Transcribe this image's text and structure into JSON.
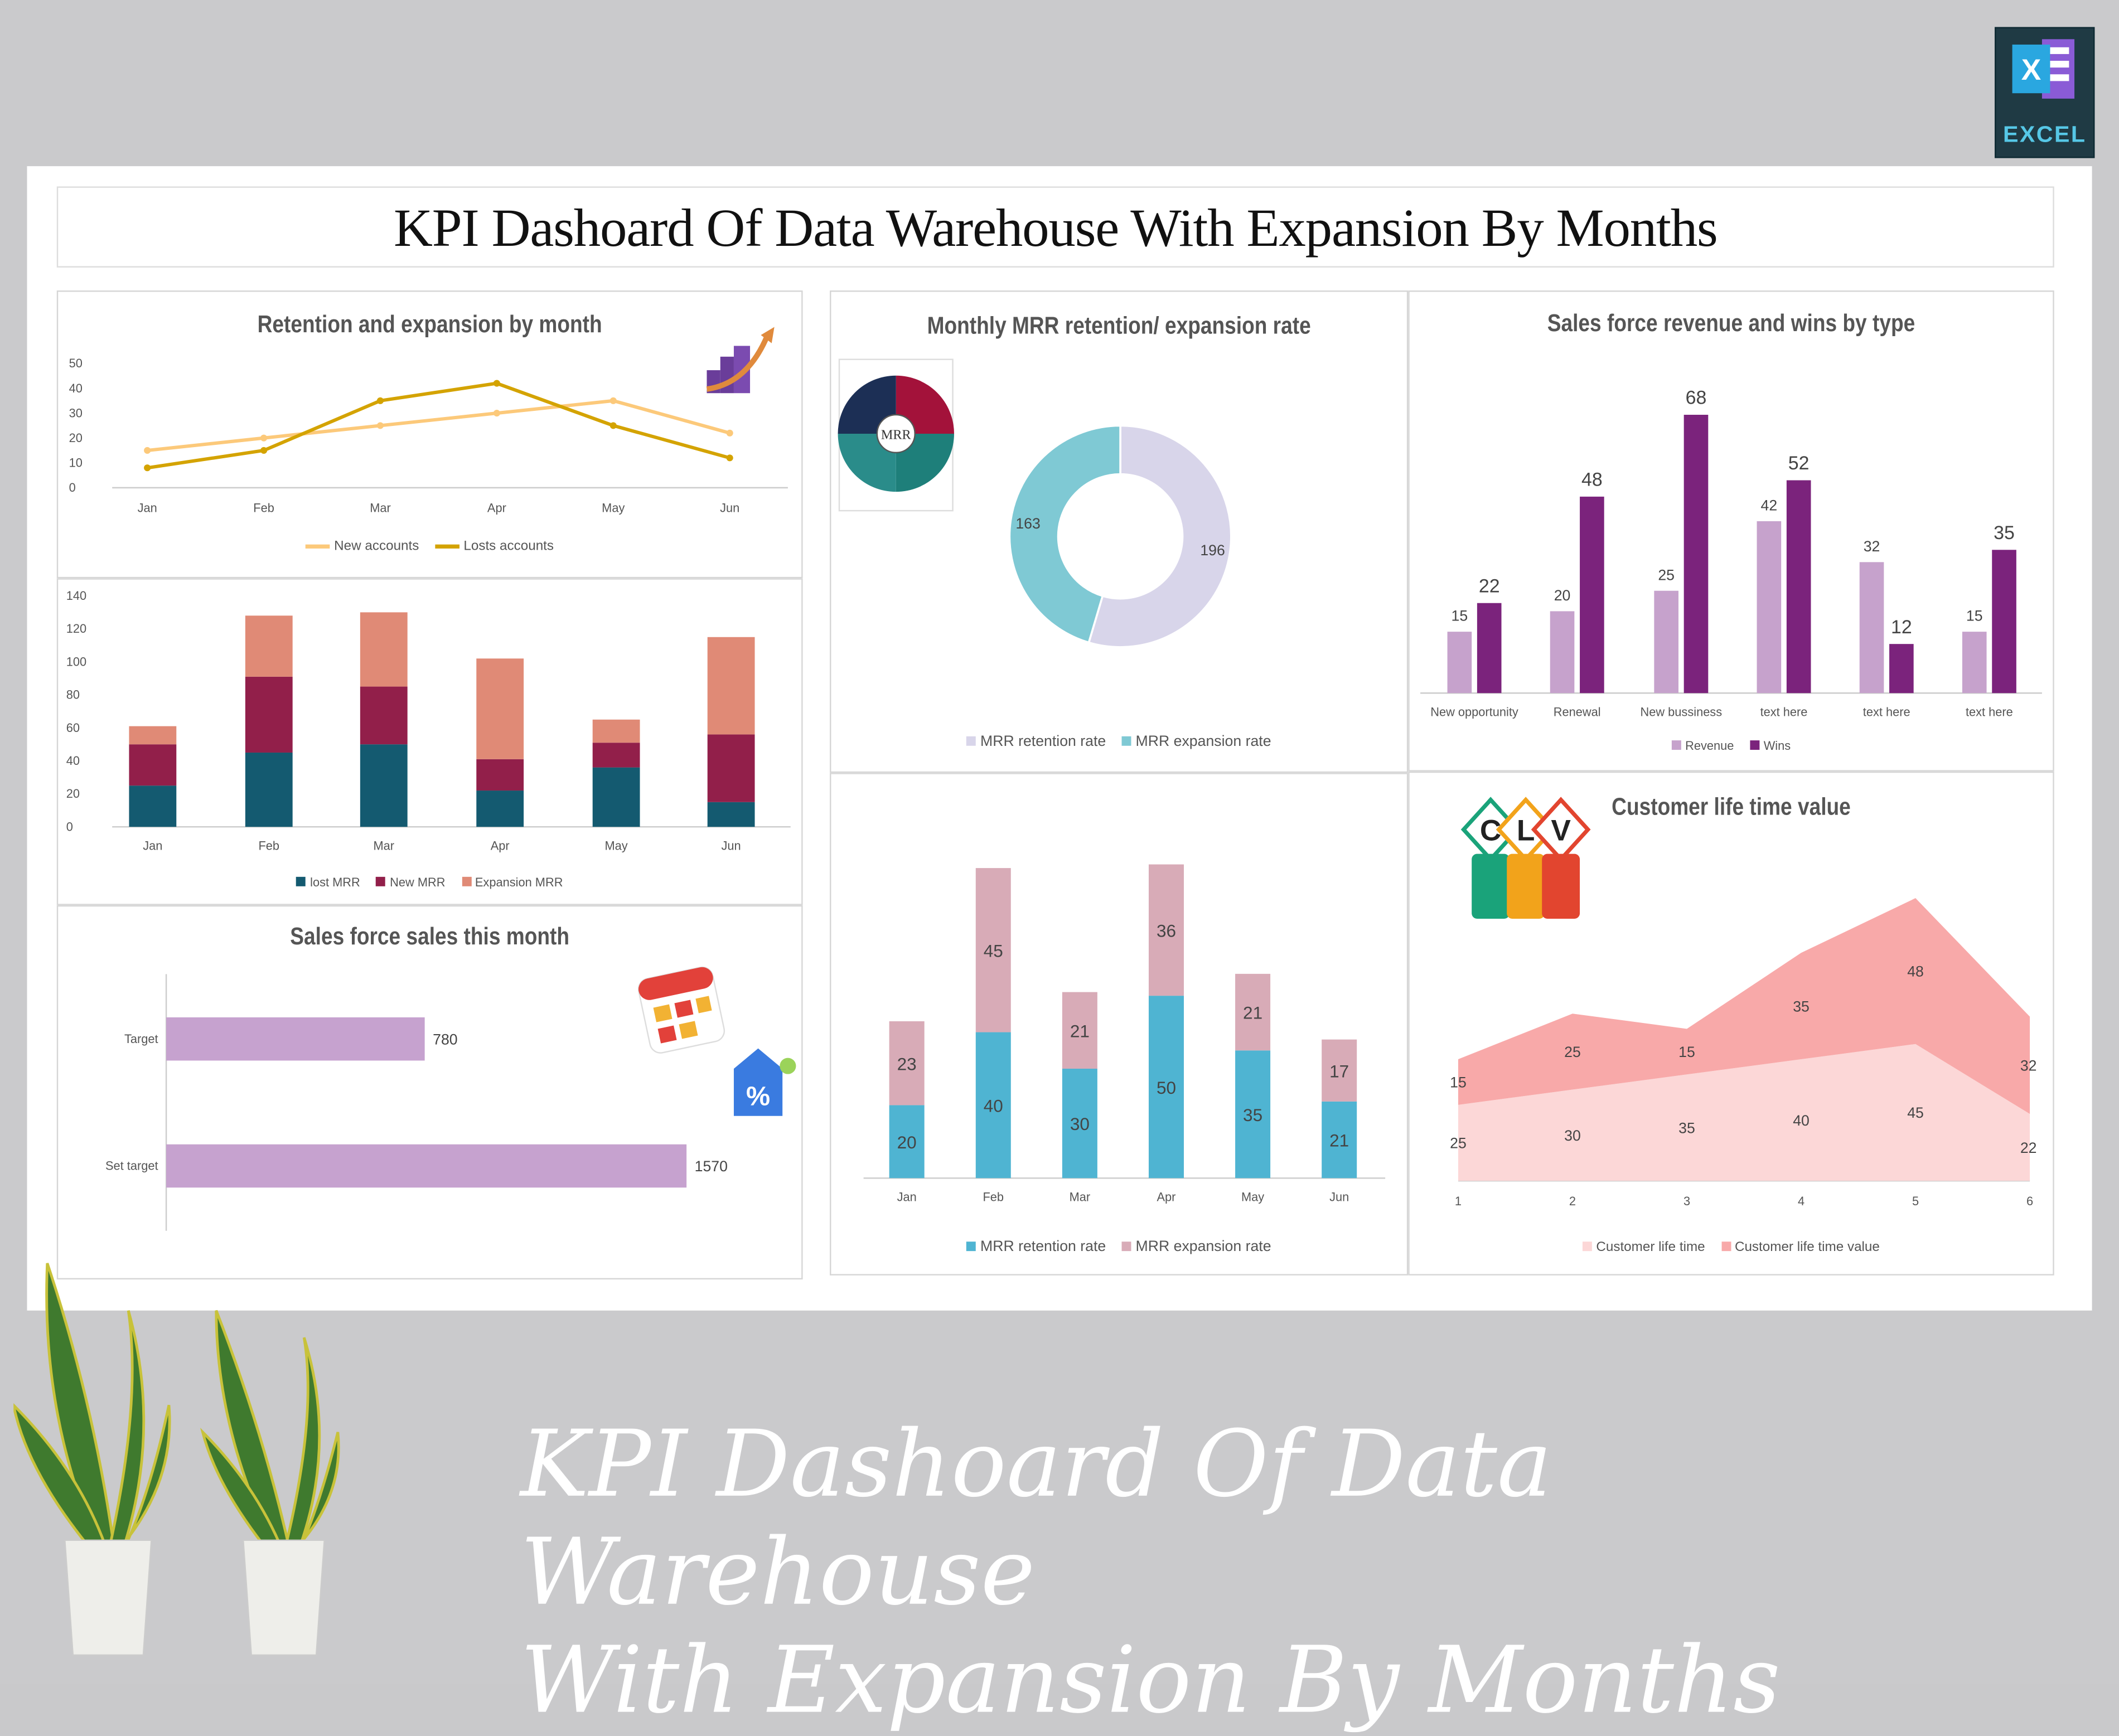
{
  "title": "KPI Dashoard Of Data Warehouse With Expansion By Months",
  "banner": {
    "line1": "KPI Dashoard Of Data Warehouse",
    "line2": "With Expansion By Months"
  },
  "excel_badge": {
    "label": "EXCEL",
    "icon": "excel-icon"
  },
  "chart_data": [
    {
      "id": "retention",
      "type": "line",
      "title": "Retention and expansion by month",
      "categories": [
        "Jan",
        "Feb",
        "Mar",
        "Apr",
        "May",
        "Jun"
      ],
      "ylim": [
        0,
        50
      ],
      "yticks": [
        "0",
        "10",
        "20",
        "30",
        "40",
        "50"
      ],
      "series": [
        {
          "name": "New accounts",
          "values": [
            15,
            20,
            25,
            30,
            35,
            22
          ],
          "color": "#fcc97a"
        },
        {
          "name": "Losts accounts",
          "values": [
            8,
            15,
            35,
            42,
            25,
            12
          ],
          "color": "#d4a300"
        }
      ]
    },
    {
      "id": "mrr_stack",
      "type": "bar",
      "stacked": true,
      "title": "",
      "categories": [
        "Jan",
        "Feb",
        "Mar",
        "Apr",
        "May",
        "Jun"
      ],
      "ylim": [
        0,
        140
      ],
      "yticks": [
        "0",
        "20",
        "40",
        "60",
        "80",
        "100",
        "120",
        "140"
      ],
      "series": [
        {
          "name": "lost MRR",
          "values": [
            25,
            45,
            50,
            22,
            36,
            15
          ],
          "color": "#145a70"
        },
        {
          "name": "New MRR",
          "values": [
            25,
            46,
            35,
            19,
            15,
            41
          ],
          "color": "#921f4a"
        },
        {
          "name": "Expansion MRR",
          "values": [
            11,
            37,
            45,
            61,
            14,
            59
          ],
          "color": "#e08a76"
        }
      ]
    },
    {
      "id": "sales_month",
      "type": "bar",
      "orientation": "horizontal",
      "title": "Sales force sales this month",
      "categories": [
        "Target",
        "Set target"
      ],
      "values": [
        780,
        1570
      ],
      "color": "#c6a2cf"
    },
    {
      "id": "mrr_donut",
      "type": "pie",
      "donut": true,
      "title": "Monthly MRR retention/ expansion rate",
      "series": [
        {
          "name": "MRR retention rate",
          "value": 196,
          "color": "#d8d5ea"
        },
        {
          "name": "MRR expansion rate",
          "value": 163,
          "color": "#7fc9d4"
        }
      ]
    },
    {
      "id": "mrr_rate",
      "type": "bar",
      "stacked": true,
      "title": "",
      "categories": [
        "Jan",
        "Feb",
        "Mar",
        "Apr",
        "May",
        "Jun"
      ],
      "series": [
        {
          "name": "MRR retention rate",
          "values": [
            20,
            40,
            30,
            50,
            35,
            21
          ],
          "color": "#4fb4d2"
        },
        {
          "name": "MRR expansion rate",
          "values": [
            23,
            45,
            21,
            36,
            21,
            17
          ],
          "color": "#d8abb7"
        }
      ]
    },
    {
      "id": "sf_revenue",
      "type": "bar",
      "title": "Sales force revenue and wins by type",
      "categories": [
        "New opportunity",
        "Renewal",
        "New bussiness",
        "text here",
        "text here",
        "text here"
      ],
      "series": [
        {
          "name": "Revenue",
          "values": [
            15,
            20,
            25,
            42,
            32,
            15
          ],
          "color": "#c6a2cc"
        },
        {
          "name": "Wins",
          "values": [
            22,
            48,
            68,
            52,
            12,
            35
          ],
          "color": "#7b237c"
        }
      ]
    },
    {
      "id": "clv",
      "type": "area",
      "stacked": true,
      "title": "Customer life time value",
      "categories": [
        "1",
        "2",
        "3",
        "4",
        "5",
        "6"
      ],
      "series": [
        {
          "name": "Customer life time",
          "values": [
            25,
            30,
            35,
            40,
            45,
            22
          ],
          "color": "#fcd7d7"
        },
        {
          "name": "Customer life time value",
          "values": [
            15,
            25,
            15,
            35,
            48,
            32
          ],
          "color": "#f8a9a9"
        }
      ]
    }
  ],
  "mrr_logo": {
    "label": "MRR"
  },
  "clv_logo": {
    "letters": [
      "C",
      "L",
      "V"
    ]
  }
}
